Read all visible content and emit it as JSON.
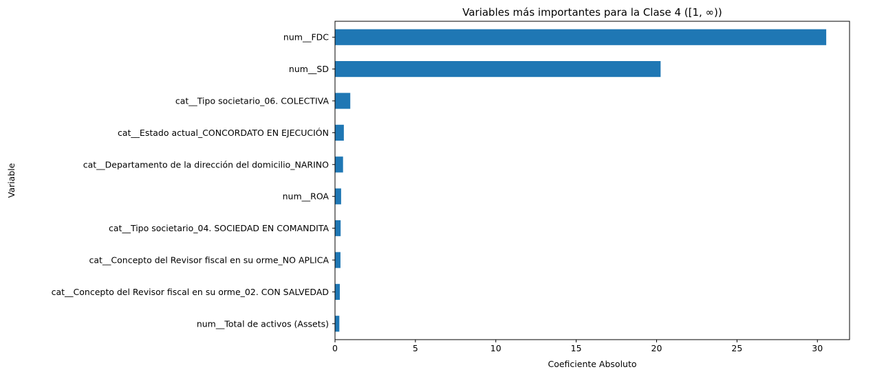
{
  "chart_data": {
    "type": "bar",
    "orientation": "horizontal",
    "title": "Variables más importantes para la Clase 4 ([1, ∞))",
    "xlabel": "Coeficiente Absoluto",
    "ylabel": "Variable",
    "xlim": [
      0,
      32
    ],
    "xticks": [
      0,
      5,
      10,
      15,
      20,
      25,
      30
    ],
    "grid": false,
    "bar_color": "#1f77b4",
    "categories": [
      "num__FDC",
      "num__SD",
      "cat__Tipo societario_06. COLECTIVA",
      "cat__Estado actual_CONCORDATO EN EJECUCIÓN",
      "cat__Departamento de la dirección del domicilio_NARINO",
      "num__ROA",
      "cat__Tipo societario_04. SOCIEDAD EN COMANDITA",
      "cat__Concepto del Revisor fiscal en su orme_NO APLICA",
      "cat__Concepto del Revisor fiscal en su orme_02. CON SALVEDAD",
      "num__Total de activos (Assets)"
    ],
    "values": [
      30.55,
      20.25,
      0.95,
      0.55,
      0.5,
      0.38,
      0.35,
      0.34,
      0.3,
      0.27
    ]
  }
}
